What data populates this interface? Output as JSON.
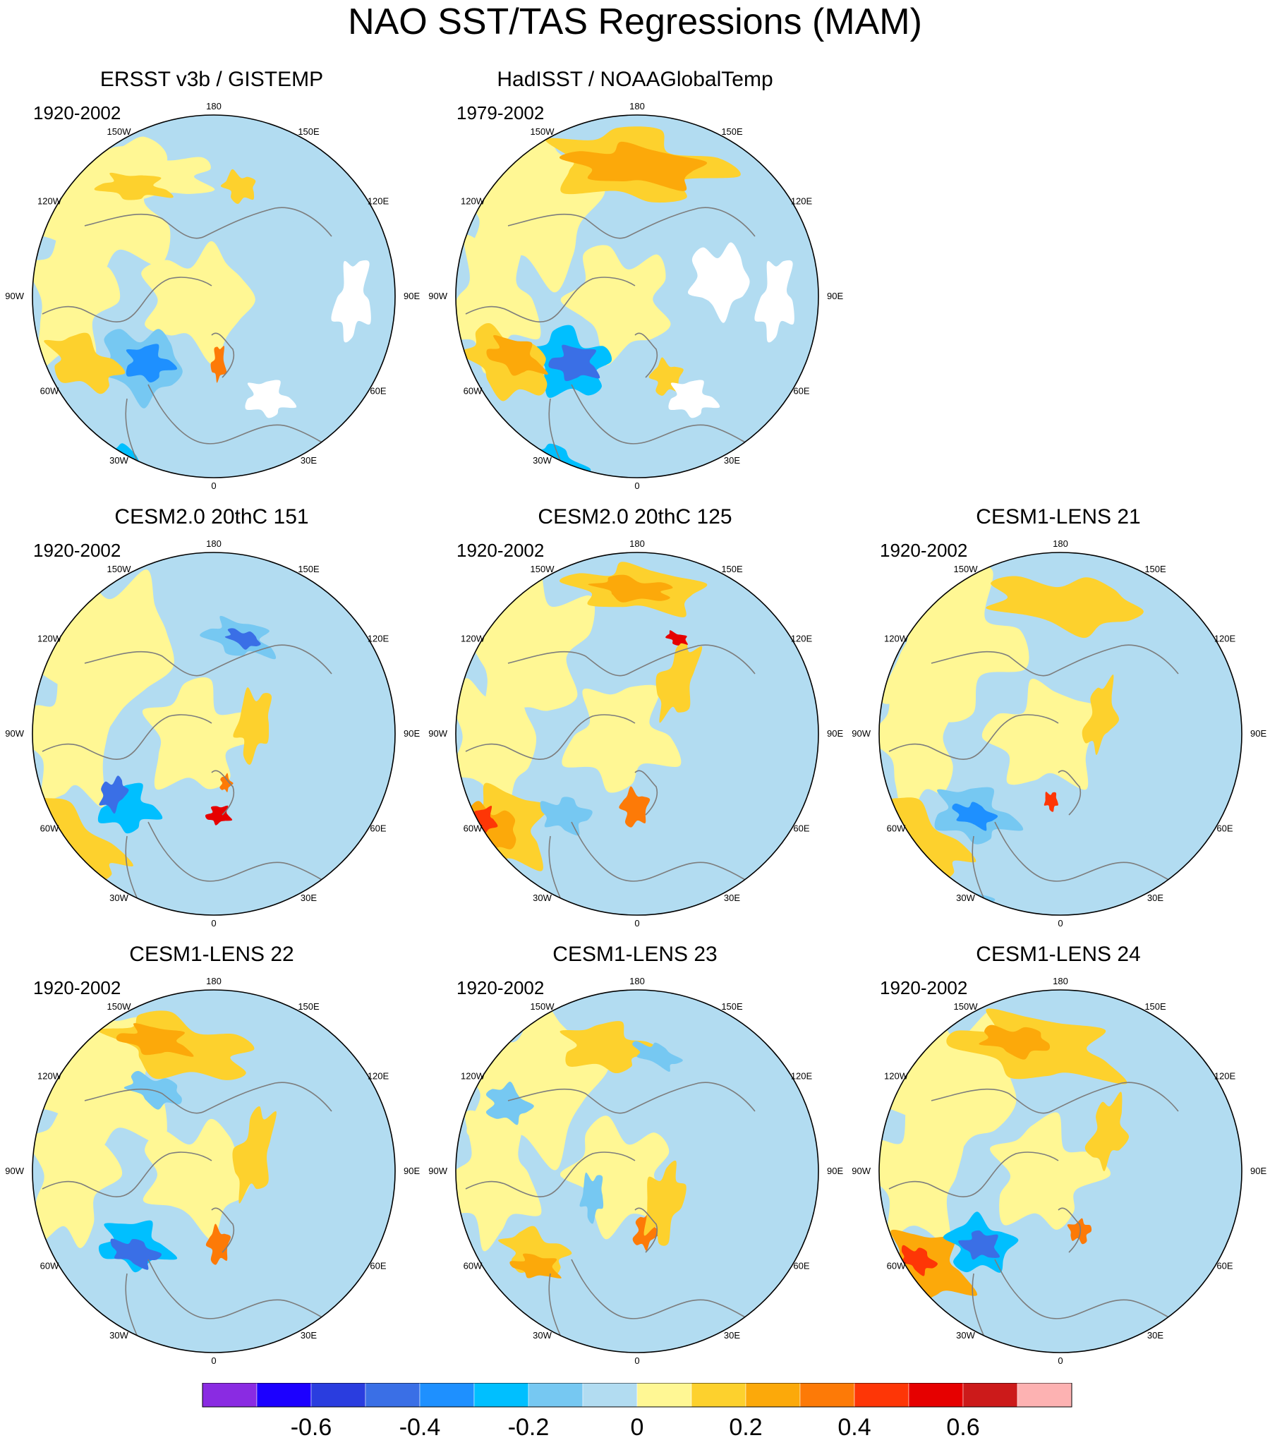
{
  "title": "NAO SST/TAS Regressions (MAM)",
  "lon_labels": [
    "180",
    "150E",
    "120E",
    "90E",
    "60E",
    "30E",
    "0",
    "30W",
    "60W",
    "90W",
    "120W",
    "150W"
  ],
  "palette": [
    "#8a2be2",
    "#1c00ff",
    "#2a3ddf",
    "#3a6fe6",
    "#1e90ff",
    "#00bfff",
    "#76c8f2",
    "#b2dcf1",
    "#fff794",
    "#fdd12d",
    "#fca90a",
    "#fd7a07",
    "#fe3606",
    "#e60000",
    "#cc1a1a",
    "#fdb2b2"
  ],
  "colorbar": {
    "ticks": [
      "-0.6",
      "-0.4",
      "-0.2",
      "0",
      "0.2",
      "0.4",
      "0.6"
    ]
  },
  "panels": [
    {
      "title": "ERSST v3b / GISTEMP",
      "period": "1920-2002"
    },
    {
      "title": "HadISST / NOAAGlobalTemp",
      "period": "1979-2002"
    },
    {
      "title": "CESM2.0 20thC 151",
      "period": "1920-2002"
    },
    {
      "title": "CESM2.0 20thC 125",
      "period": "1920-2002"
    },
    {
      "title": "CESM1-LENS 21",
      "period": "1920-2002"
    },
    {
      "title": "CESM1-LENS 22",
      "period": "1920-2002"
    },
    {
      "title": "CESM1-LENS 23",
      "period": "1920-2002"
    },
    {
      "title": "CESM1-LENS 24",
      "period": "1920-2002"
    }
  ]
}
